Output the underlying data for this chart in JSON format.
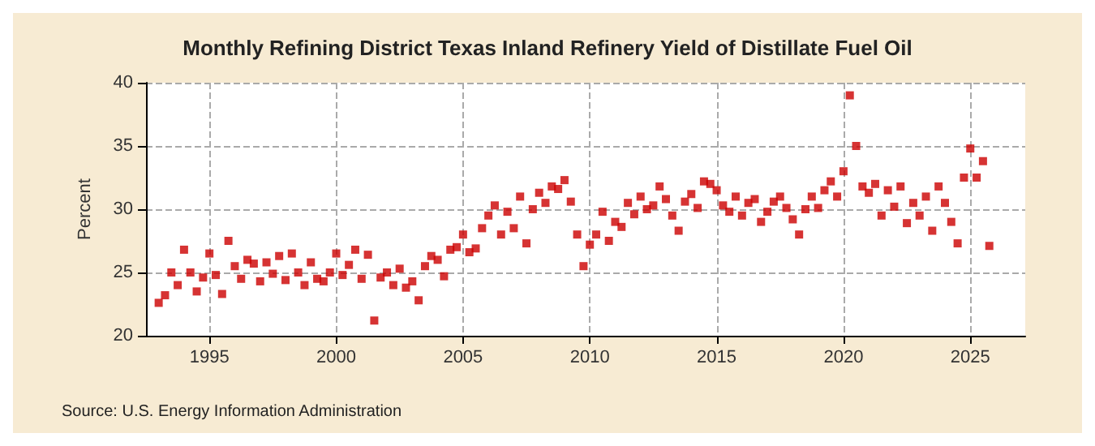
{
  "chart_data": {
    "type": "scatter",
    "title": "Monthly Refining District Texas Inland Refinery Yield of Distillate Fuel Oil",
    "ylabel": "Percent",
    "annotations": [
      "Source: U.S. Energy Information Administration"
    ],
    "x": [
      "1993-01",
      "1993-04",
      "1993-07",
      "1993-10",
      "1994-01",
      "1994-04",
      "1994-07",
      "1994-10",
      "1995-01",
      "1995-04",
      "1995-07",
      "1995-10",
      "1996-01",
      "1996-04",
      "1996-07",
      "1996-10",
      "1997-01",
      "1997-04",
      "1997-07",
      "1997-10",
      "1998-01",
      "1998-04",
      "1998-07",
      "1998-10",
      "1999-01",
      "1999-04",
      "1999-07",
      "1999-10",
      "2000-01",
      "2000-04",
      "2000-07",
      "2000-10",
      "2001-01",
      "2001-04",
      "2001-07",
      "2001-10",
      "2002-01",
      "2002-04",
      "2002-07",
      "2002-10",
      "2003-01",
      "2003-04",
      "2003-07",
      "2003-10",
      "2004-01",
      "2004-04",
      "2004-07",
      "2004-10",
      "2005-01",
      "2005-04",
      "2005-07",
      "2005-10",
      "2006-01",
      "2006-04",
      "2006-07",
      "2006-10",
      "2007-01",
      "2007-04",
      "2007-07",
      "2007-10",
      "2008-01",
      "2008-04",
      "2008-07",
      "2008-10",
      "2009-01",
      "2009-04",
      "2009-07",
      "2009-10",
      "2010-01",
      "2010-04",
      "2010-07",
      "2010-10",
      "2011-01",
      "2011-04",
      "2011-07",
      "2011-10",
      "2012-01",
      "2012-04",
      "2012-07",
      "2012-10",
      "2013-01",
      "2013-04",
      "2013-07",
      "2013-10",
      "2014-01",
      "2014-04",
      "2014-07",
      "2014-10",
      "2015-01",
      "2015-04",
      "2015-07",
      "2015-10",
      "2016-01",
      "2016-04",
      "2016-07",
      "2016-10",
      "2017-01",
      "2017-04",
      "2017-07",
      "2017-10",
      "2018-01",
      "2018-04",
      "2018-07",
      "2018-10",
      "2019-01",
      "2019-04",
      "2019-07",
      "2019-10",
      "2020-01",
      "2020-04",
      "2020-07",
      "2020-10",
      "2021-01",
      "2021-04",
      "2021-07",
      "2021-10",
      "2022-01",
      "2022-04",
      "2022-07",
      "2022-10",
      "2023-01",
      "2023-04",
      "2023-07",
      "2023-10",
      "2024-01",
      "2024-04",
      "2024-07",
      "2024-10",
      "2025-01",
      "2025-04",
      "2025-07",
      "2025-10"
    ],
    "series": [
      {
        "color": "#cc0000",
        "values": [
          22.6,
          23.2,
          25.0,
          24.0,
          26.8,
          25.0,
          23.5,
          24.6,
          26.5,
          24.8,
          23.3,
          27.5,
          25.5,
          24.5,
          26.0,
          25.7,
          24.3,
          25.8,
          24.9,
          26.3,
          24.4,
          26.5,
          25.0,
          24.0,
          25.8,
          24.5,
          24.3,
          25.0,
          26.5,
          24.8,
          25.6,
          26.8,
          24.5,
          26.4,
          21.2,
          24.6,
          25.0,
          24.0,
          25.3,
          23.8,
          24.3,
          22.8,
          25.5,
          26.3,
          26.0,
          24.7,
          26.8,
          27.0,
          28.0,
          26.6,
          26.9,
          28.5,
          29.5,
          30.3,
          28.0,
          29.8,
          28.5,
          31.0,
          27.3,
          30.0,
          31.3,
          30.5,
          31.8,
          31.6,
          32.3,
          30.6,
          28.0,
          25.5,
          27.2,
          28.0,
          29.8,
          27.5,
          29.0,
          28.6,
          30.5,
          29.6,
          31.0,
          30.0,
          30.3,
          31.8,
          30.8,
          29.5,
          28.3,
          30.6,
          31.2,
          30.1,
          32.2,
          32.0,
          31.5,
          30.3,
          29.8,
          31.0,
          29.5,
          30.5,
          30.8,
          29.0,
          29.8,
          30.6,
          31.0,
          30.1,
          29.2,
          28.0,
          30.0,
          31.0,
          30.1,
          31.5,
          32.2,
          31.0,
          33.0,
          39.0,
          35.0,
          31.8,
          31.3,
          32.0,
          29.5,
          31.5,
          30.2,
          31.8,
          28.9,
          30.5,
          29.5,
          31.0,
          28.3,
          31.8,
          30.5,
          29.0,
          27.3,
          32.5,
          34.8,
          32.5,
          33.8,
          27.1
        ]
      }
    ],
    "xlim": [
      "1992-07",
      "2027-03"
    ],
    "xticks": [
      {
        "value": "1995",
        "label": "1995"
      },
      {
        "value": "2000",
        "label": "2000"
      },
      {
        "value": "2005",
        "label": "2005"
      },
      {
        "value": "2010",
        "label": "2010"
      },
      {
        "value": "2015",
        "label": "2015"
      },
      {
        "value": "2020",
        "label": "2020"
      },
      {
        "value": "2025",
        "label": "2025"
      }
    ],
    "ylim": [
      20,
      40
    ],
    "yticks": [
      20,
      25,
      30,
      35,
      40
    ],
    "grid": true,
    "marker": "square"
  }
}
